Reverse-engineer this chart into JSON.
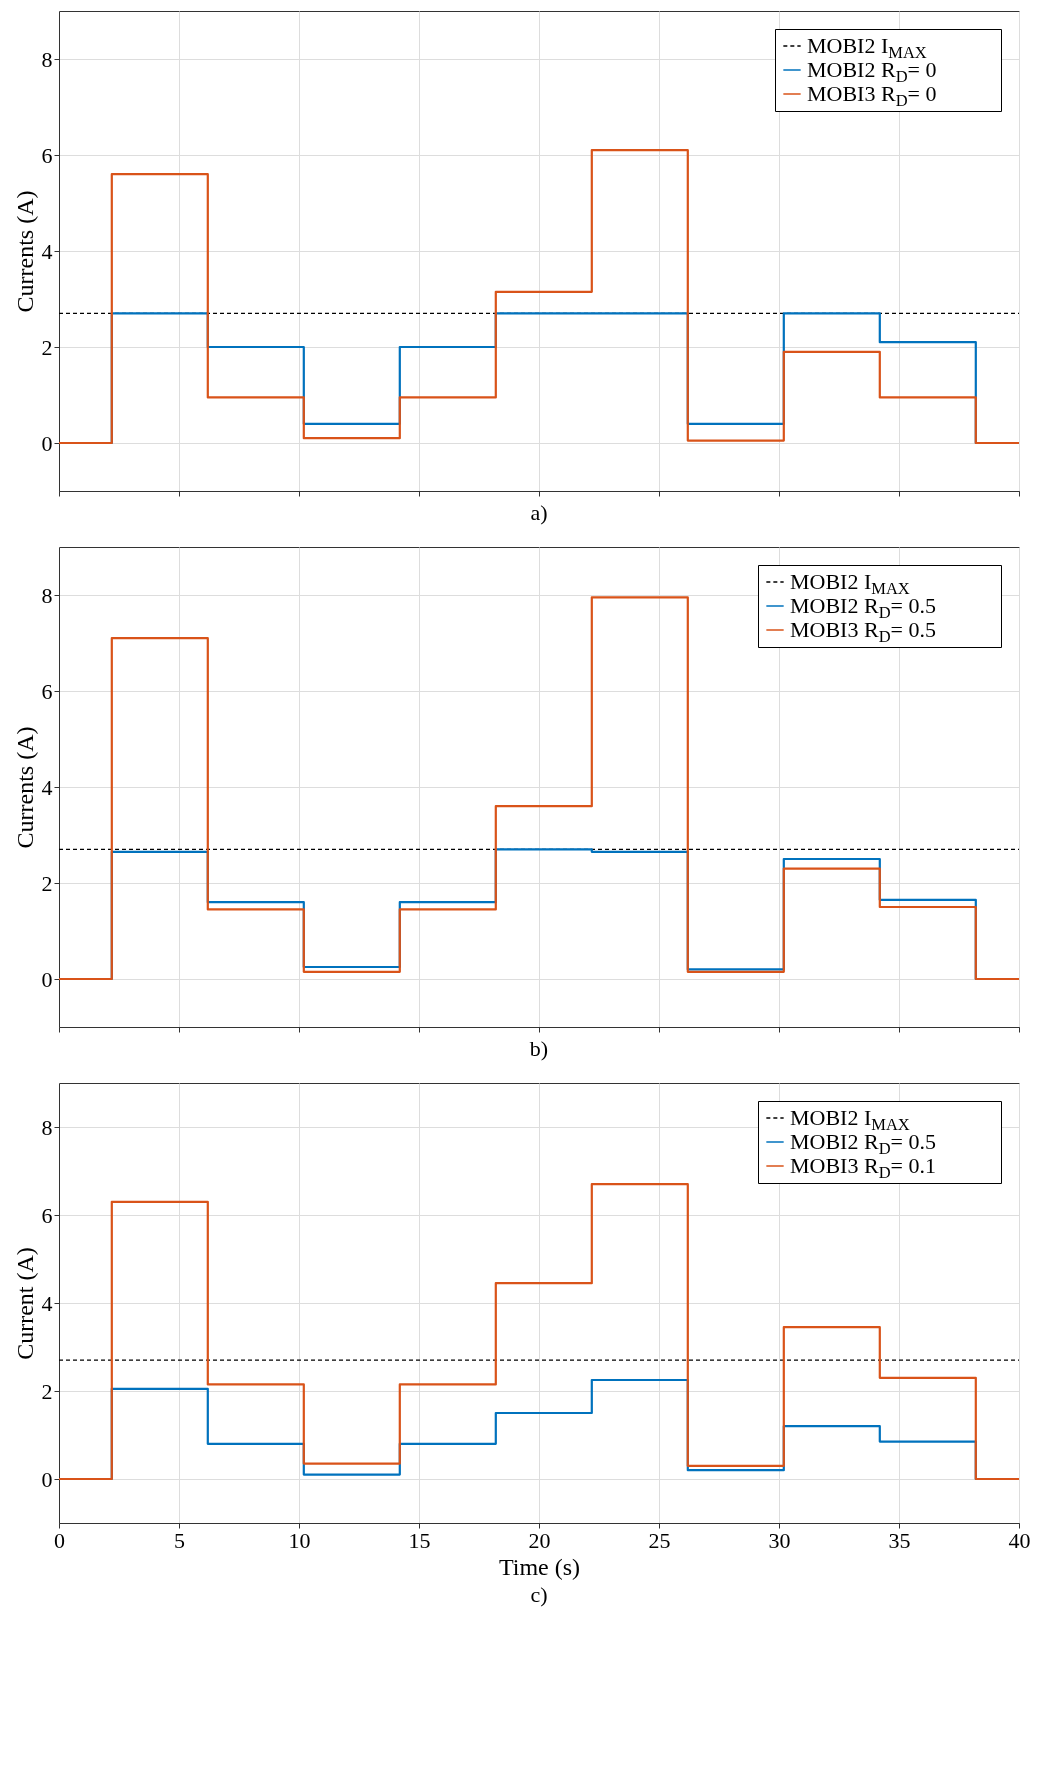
{
  "chart_data": [
    {
      "type": "step",
      "ylabel": "Currents (A)",
      "annotations": [
        "a)"
      ],
      "xlim": [
        0,
        40
      ],
      "xticks": [
        0,
        5,
        10,
        15,
        20,
        25,
        30,
        35,
        40
      ],
      "ylim": [
        -1,
        9
      ],
      "yticks": [
        0,
        2,
        4,
        6,
        8
      ],
      "grid": true,
      "legend": "top right",
      "tick_labels": "y",
      "series": [
        {
          "name": "MOBI2 I$_{MAX}$",
          "line_style": "dashed",
          "color": "#000000",
          "x": [
            0,
            40
          ],
          "values": [
            2.7,
            2.7
          ]
        },
        {
          "name": "MOBI2 R$_{D}$= 0",
          "color": "#0072bd",
          "x": [
            0,
            2.2,
            6.2,
            10.2,
            14.2,
            18.2,
            22.2,
            26.2,
            30.2,
            34.2,
            38.2,
            40
          ],
          "values": [
            0,
            2.7,
            2.0,
            0.4,
            2.0,
            2.7,
            2.7,
            0.4,
            2.7,
            2.1,
            0,
            0
          ]
        },
        {
          "name": "MOBI3 R$_{D}$= 0",
          "color": "#d95319",
          "x": [
            0,
            2.2,
            6.2,
            10.2,
            14.2,
            18.2,
            22.2,
            26.2,
            30.2,
            34.2,
            38.2,
            40
          ],
          "values": [
            0,
            5.6,
            0.95,
            0.1,
            0.95,
            3.15,
            6.1,
            0.05,
            1.9,
            0.95,
            0,
            0
          ]
        }
      ]
    },
    {
      "type": "step",
      "ylabel": "Currents (A)",
      "annotations": [
        "b)"
      ],
      "xlim": [
        0,
        40
      ],
      "xticks": [
        0,
        5,
        10,
        15,
        20,
        25,
        30,
        35,
        40
      ],
      "ylim": [
        -1,
        9
      ],
      "yticks": [
        0,
        2,
        4,
        6,
        8
      ],
      "grid": true,
      "legend": "top right",
      "tick_labels": "y",
      "series": [
        {
          "name": "MOBI2 I$_{MAX}$",
          "line_style": "dashed",
          "color": "#000000",
          "x": [
            0,
            40
          ],
          "values": [
            2.7,
            2.7
          ]
        },
        {
          "name": "MOBI2 R$_{D}$= 0.5",
          "color": "#0072bd",
          "x": [
            0,
            2.2,
            6.2,
            10.2,
            14.2,
            18.2,
            22.2,
            26.2,
            30.2,
            34.2,
            38.2,
            40
          ],
          "values": [
            0,
            2.65,
            1.6,
            0.25,
            1.6,
            2.7,
            2.65,
            0.2,
            2.5,
            1.65,
            0,
            0
          ]
        },
        {
          "name": "MOBI3 R$_{D}$= 0.5",
          "color": "#d95319",
          "x": [
            0,
            2.2,
            6.2,
            10.2,
            14.2,
            18.2,
            22.2,
            26.2,
            30.2,
            34.2,
            38.2,
            40
          ],
          "values": [
            0,
            7.1,
            1.45,
            0.15,
            1.45,
            3.6,
            7.95,
            0.15,
            2.3,
            1.5,
            0,
            0
          ]
        }
      ]
    },
    {
      "type": "step",
      "xlabel": "Time (s)",
      "ylabel": "Current (A)",
      "annotations": [
        "c)"
      ],
      "xlim": [
        0,
        40
      ],
      "xticks": [
        0,
        5,
        10,
        15,
        20,
        25,
        30,
        35,
        40
      ],
      "ylim": [
        -1,
        9
      ],
      "yticks": [
        0,
        2,
        4,
        6,
        8
      ],
      "grid": true,
      "legend": "top right",
      "series": [
        {
          "name": "MOBI2 I$_{MAX}$",
          "line_style": "dashed",
          "color": "#000000",
          "x": [
            0,
            40
          ],
          "values": [
            2.7,
            2.7
          ]
        },
        {
          "name": "MOBI2 R$_{D}$= 0.5",
          "color": "#0072bd",
          "x": [
            0,
            2.2,
            6.2,
            10.2,
            14.2,
            18.2,
            22.2,
            26.2,
            30.2,
            34.2,
            38.2,
            40
          ],
          "values": [
            0,
            2.05,
            0.8,
            0.1,
            0.8,
            1.5,
            2.25,
            0.2,
            1.2,
            0.85,
            0,
            0
          ]
        },
        {
          "name": "MOBI3 R$_{D}$= 0.1",
          "color": "#d95319",
          "x": [
            0,
            2.2,
            6.2,
            10.2,
            14.2,
            18.2,
            22.2,
            26.2,
            30.2,
            34.2,
            38.2,
            40
          ],
          "values": [
            0,
            6.3,
            2.15,
            0.35,
            2.15,
            4.45,
            6.7,
            0.3,
            3.45,
            2.3,
            0,
            0
          ]
        }
      ]
    }
  ]
}
